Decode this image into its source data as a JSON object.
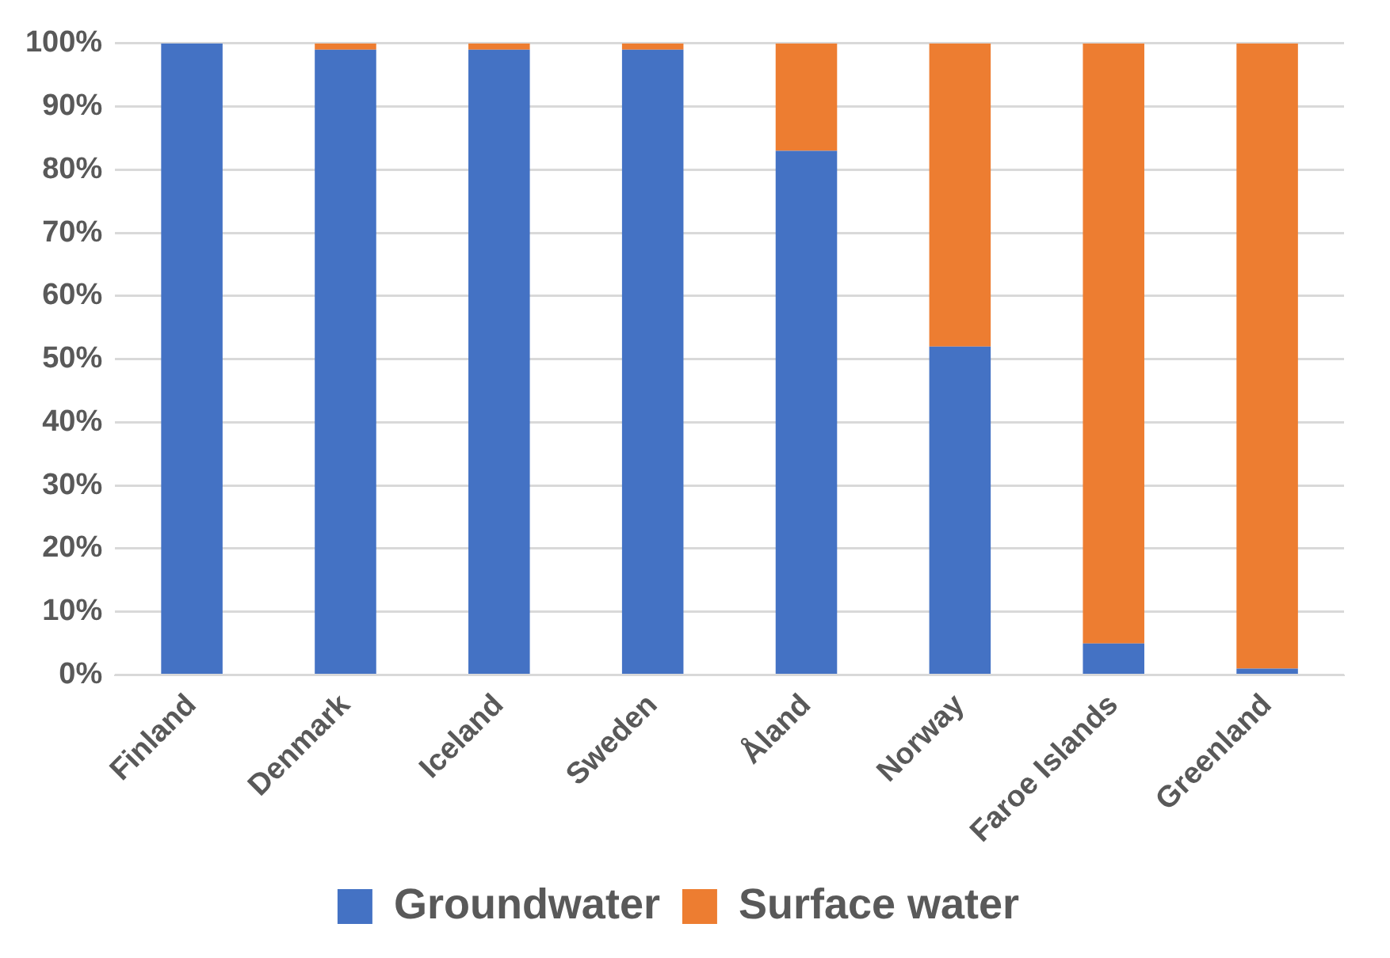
{
  "chart_data": {
    "type": "bar",
    "stacked": true,
    "categories": [
      "Finland",
      "Denmark",
      "Iceland",
      "Sweden",
      "Åland",
      "Norway",
      "Faroe Islands",
      "Greenland"
    ],
    "series": [
      {
        "name": "Groundwater",
        "color": "#4472c4",
        "values": [
          100,
          99,
          99,
          99,
          83,
          52,
          5,
          1
        ]
      },
      {
        "name": "Surface water",
        "color": "#ed7d31",
        "values": [
          0,
          1,
          1,
          1,
          17,
          48,
          95,
          99
        ]
      }
    ],
    "ylim": [
      0,
      100
    ],
    "yticks": [
      {
        "value": 0,
        "label": "0%"
      },
      {
        "value": 10,
        "label": "10%"
      },
      {
        "value": 20,
        "label": "20%"
      },
      {
        "value": 30,
        "label": "30%"
      },
      {
        "value": 40,
        "label": "40%"
      },
      {
        "value": 50,
        "label": "50%"
      },
      {
        "value": 60,
        "label": "60%"
      },
      {
        "value": 70,
        "label": "70%"
      },
      {
        "value": 80,
        "label": "80%"
      },
      {
        "value": 90,
        "label": "90%"
      },
      {
        "value": 100,
        "label": "100%"
      }
    ],
    "grid": "y",
    "legend": "bottom"
  }
}
